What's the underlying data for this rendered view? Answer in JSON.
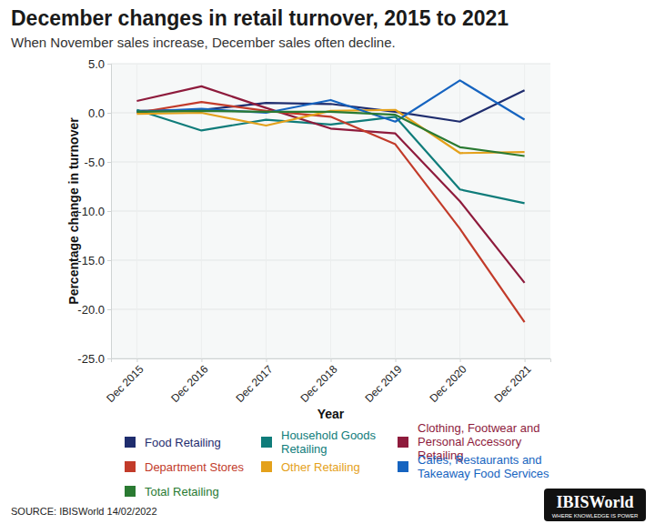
{
  "chart_data": {
    "type": "line",
    "title": "December changes in retail turnover, 2015 to 2021",
    "subtitle": "When November sales increase, December sales often decline.",
    "x_label": "Year",
    "y_label": "Percentage change in turnover",
    "source": "SOURCE: IBISWorld 14/02/2022",
    "logo_text": "IBISWorld",
    "logo_tagline": "WHERE KNOWLEDGE IS POWER",
    "categories": [
      "Dec 2015",
      "Dec 2016",
      "Dec 2017",
      "Dec 2018",
      "Dec 2019",
      "Dec 2020",
      "Dec 2021"
    ],
    "ylim": [
      -25,
      5
    ],
    "yticks": [
      {
        "value": -25,
        "label": "-25.0"
      },
      {
        "value": -20,
        "label": "-20.0"
      },
      {
        "value": -15,
        "label": "-15.0"
      },
      {
        "value": -10,
        "label": "-10.0"
      },
      {
        "value": -5,
        "label": "-5.0"
      },
      {
        "value": 0,
        "label": "0.0"
      },
      {
        "value": 5,
        "label": "5.0"
      }
    ],
    "grid": true,
    "legend": "bottom",
    "series": [
      {
        "name": "Food Retailing",
        "color": "#1f2d6e",
        "values": [
          0.2,
          0.3,
          1.0,
          0.9,
          0.1,
          -0.9,
          2.3
        ]
      },
      {
        "name": "Household Goods Retailing",
        "color": "#0f7c7a",
        "values": [
          0.3,
          -1.8,
          -0.7,
          -1.2,
          -0.4,
          -7.8,
          -9.2
        ]
      },
      {
        "name": "Clothing, Footwear and Personal Accessory Retailing",
        "color": "#8e1b3c",
        "values": [
          1.2,
          2.7,
          0.5,
          -1.6,
          -2.1,
          -9.0,
          -17.3
        ]
      },
      {
        "name": "Department Stores",
        "color": "#c23b2a",
        "values": [
          0.0,
          1.1,
          0.2,
          -0.4,
          -3.2,
          -11.8,
          -21.3
        ]
      },
      {
        "name": "Other Retailing",
        "color": "#e4a11b",
        "values": [
          -0.1,
          0.0,
          -1.3,
          0.2,
          0.3,
          -4.1,
          -4.0
        ]
      },
      {
        "name": "Cafes, Restaurants and Takeaway Food Services",
        "color": "#1664c0",
        "values": [
          0.1,
          0.4,
          0.0,
          1.3,
          -0.9,
          3.3,
          -0.7
        ]
      },
      {
        "name": "Total Retailing",
        "color": "#2a7a32",
        "values": [
          0.1,
          0.2,
          0.1,
          0.1,
          -0.2,
          -3.5,
          -4.4
        ]
      }
    ]
  }
}
